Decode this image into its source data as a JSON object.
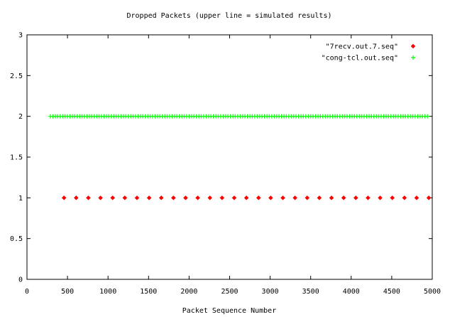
{
  "chart_data": {
    "type": "scatter",
    "title": "Dropped Packets (upper line = simulated results)",
    "xlabel": "Packet Sequence Number",
    "ylabel": "",
    "xlim": [
      0,
      5000
    ],
    "ylim": [
      0,
      3
    ],
    "x_ticks": [
      0,
      500,
      1000,
      1500,
      2000,
      2500,
      3000,
      3500,
      4000,
      4500,
      5000
    ],
    "y_ticks": [
      0,
      0.5,
      1,
      1.5,
      2,
      2.5,
      3
    ],
    "x_tick_labels": [
      "0",
      "500",
      "1000",
      "1500",
      "2000",
      "2500",
      "3000",
      "3500",
      "4000",
      "4500",
      "5000"
    ],
    "y_tick_labels": [
      "0",
      "0.5",
      "1",
      "1.5",
      "2",
      "2.5",
      "3"
    ],
    "grid": false,
    "legend_position": "top-right",
    "series": [
      {
        "name": "\"7recv.out.7.seq\"",
        "marker": "diamond",
        "color": "#ff0000",
        "x": [
          457,
          607,
          757,
          907,
          1057,
          1207,
          1357,
          1507,
          1657,
          1807,
          1957,
          2107,
          2257,
          2407,
          2557,
          2707,
          2857,
          3007,
          3157,
          3307,
          3457,
          3607,
          3757,
          3907,
          4057,
          4207,
          4357,
          4507,
          4657,
          4807,
          4957
        ],
        "y": [
          1,
          1,
          1,
          1,
          1,
          1,
          1,
          1,
          1,
          1,
          1,
          1,
          1,
          1,
          1,
          1,
          1,
          1,
          1,
          1,
          1,
          1,
          1,
          1,
          1,
          1,
          1,
          1,
          1,
          1,
          1
        ]
      },
      {
        "name": "\"cong-tcl.out.seq\"",
        "marker": "plus",
        "color": "#00ff00",
        "x_start": 290,
        "x_end": 4960,
        "x_step": 30,
        "y_value": 2
      }
    ]
  }
}
